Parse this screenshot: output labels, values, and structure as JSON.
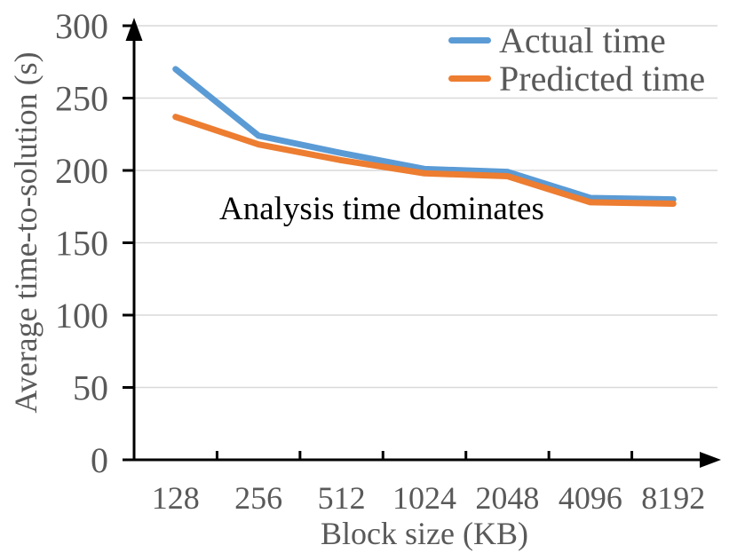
{
  "chart_data": {
    "type": "line",
    "title": "",
    "categories": [
      "128",
      "256",
      "512",
      "1024",
      "2048",
      "4096",
      "8192"
    ],
    "series": [
      {
        "name": "Actual time",
        "color": "#5B9BD5",
        "values": [
          270,
          224,
          212,
          201,
          199,
          181,
          180
        ]
      },
      {
        "name": "Predicted time",
        "color": "#ED7D31",
        "values": [
          237,
          218,
          207,
          198,
          196,
          178,
          177
        ]
      }
    ],
    "xlabel": "Block size (KB)",
    "ylabel": "Average time-to-solution (s)",
    "ylim": [
      0,
      300
    ],
    "yticks": [
      0,
      50,
      100,
      150,
      200,
      250,
      300
    ],
    "grid": "horizontal",
    "legend_position": "top-right-inside",
    "annotation": "Analysis time dominates",
    "style": {
      "axis_color": "#000000",
      "gridline_color": "#D9D9D9",
      "tick_label_color": "#595959",
      "annotation_color": "#000000",
      "background": "#ffffff"
    }
  }
}
